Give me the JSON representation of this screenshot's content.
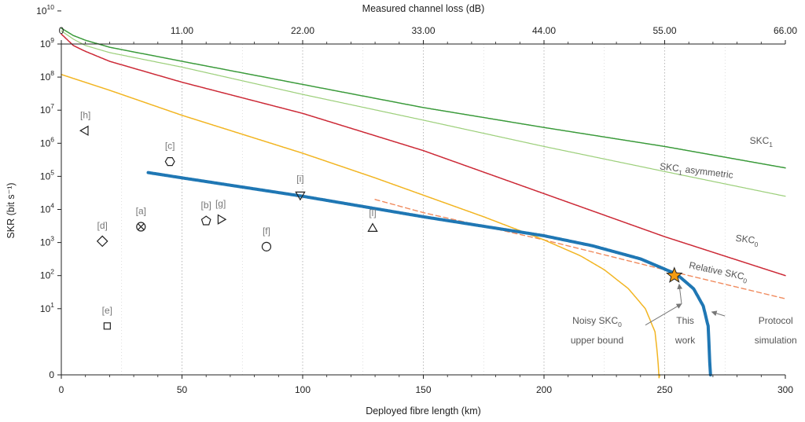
{
  "chart_data": {
    "type": "line",
    "xlabel": "Deployed fibre length (km)",
    "x2label": "Measured channel loss (dB)",
    "ylabel": "SKR (bit s⁻¹)",
    "xlim": [
      0,
      300
    ],
    "x_ticks": [
      "0",
      "50",
      "100",
      "150",
      "200",
      "250",
      "300"
    ],
    "x2_ticks": [
      "0",
      "11.00",
      "22.00",
      "33.00",
      "44.00",
      "55.00",
      "66.00"
    ],
    "y_scale": "log-with-zero",
    "y_ticks": [
      {
        "value": 0,
        "base": "0",
        "exp": ""
      },
      {
        "value": 10,
        "base": "10",
        "exp": "1"
      },
      {
        "value": 100,
        "base": "10",
        "exp": "2"
      },
      {
        "value": 1000,
        "base": "10",
        "exp": "3"
      },
      {
        "value": 10000,
        "base": "10",
        "exp": "4"
      },
      {
        "value": 100000,
        "base": "10",
        "exp": "5"
      },
      {
        "value": 1000000,
        "base": "10",
        "exp": "6"
      },
      {
        "value": 10000000,
        "base": "10",
        "exp": "7"
      },
      {
        "value": 100000000,
        "base": "10",
        "exp": "8"
      },
      {
        "value": 1000000000,
        "base": "10",
        "exp": "9"
      },
      {
        "value": 10000000000,
        "base": "10",
        "exp": "10"
      }
    ],
    "grid": "vertical dotted",
    "series": [
      {
        "id": "skc1",
        "color": "#3a9a3a",
        "width": 1.5,
        "dash": "",
        "points": [
          [
            0,
            3000000000.0
          ],
          [
            5,
            1800000000.0
          ],
          [
            10,
            1300000000.0
          ],
          [
            20,
            800000000.0
          ],
          [
            50,
            300000000.0
          ],
          [
            100,
            60000000.0
          ],
          [
            150,
            12000000.0
          ],
          [
            200,
            3000000.0
          ],
          [
            250,
            800000.0
          ],
          [
            300,
            180000.0
          ]
        ]
      },
      {
        "id": "skc1-asym",
        "color": "#9ccf7a",
        "width": 1.2,
        "dash": "",
        "points": [
          [
            0,
            2500000000.0
          ],
          [
            5,
            1400000000.0
          ],
          [
            10,
            900000000.0
          ],
          [
            20,
            550000000.0
          ],
          [
            50,
            200000000.0
          ],
          [
            100,
            30000000.0
          ],
          [
            150,
            5000000.0
          ],
          [
            200,
            800000.0
          ],
          [
            250,
            140000.0
          ],
          [
            300,
            25000.0
          ]
        ]
      },
      {
        "id": "skc0",
        "color": "#cc2936",
        "width": 1.5,
        "dash": "",
        "points": [
          [
            0,
            2000000000.0
          ],
          [
            5,
            900000000.0
          ],
          [
            10,
            600000000.0
          ],
          [
            20,
            300000000.0
          ],
          [
            50,
            70000000.0
          ],
          [
            100,
            8000000.0
          ],
          [
            150,
            600000.0
          ],
          [
            200,
            30000.0
          ],
          [
            250,
            1500.0
          ],
          [
            300,
            100.0
          ]
        ]
      },
      {
        "id": "relative-skc0",
        "color": "#f08a5d",
        "width": 1.4,
        "dash": "6 4",
        "points": [
          [
            130,
            20000.0
          ],
          [
            150,
            8000.0
          ],
          [
            200,
            1200.0
          ],
          [
            250,
            150.0
          ],
          [
            300,
            20.0
          ]
        ]
      },
      {
        "id": "noisy-skc0",
        "color": "#f2b522",
        "width": 1.5,
        "dash": "",
        "points": [
          [
            0,
            120000000.0
          ],
          [
            20,
            40000000.0
          ],
          [
            50,
            7000000.0
          ],
          [
            100,
            500000.0
          ],
          [
            130,
            90000.0
          ],
          [
            150,
            27000.0
          ],
          [
            175,
            6000.0
          ],
          [
            200,
            1200.0
          ],
          [
            215,
            400.0
          ],
          [
            225,
            150.0
          ],
          [
            235,
            40.0
          ],
          [
            242,
            10.0
          ],
          [
            246,
            2.0
          ],
          [
            248,
            0
          ]
        ]
      },
      {
        "id": "protocol-simulation",
        "color": "#1f77b4",
        "width": 4,
        "dash": "",
        "points": [
          [
            36,
            130000.0
          ],
          [
            50,
            90000.0
          ],
          [
            100,
            25000.0
          ],
          [
            150,
            6000.0
          ],
          [
            200,
            1600.0
          ],
          [
            220,
            800.0
          ],
          [
            240,
            320.0
          ],
          [
            255,
            110.0
          ],
          [
            262,
            40.0
          ],
          [
            266,
            12.0
          ],
          [
            268,
            3.0
          ],
          [
            269,
            0
          ]
        ]
      }
    ],
    "series_labels": [
      {
        "text": "SKC",
        "sub": "1",
        "tail": "",
        "color": "#555555",
        "x": 290,
        "y": 950000.0,
        "rot": 0
      },
      {
        "text": "SKC",
        "sub": "1",
        "tail": " asymmetric",
        "color": "#555555",
        "x": 263,
        "y": 120000.0,
        "rot": 7
      },
      {
        "text": "SKC",
        "sub": "0",
        "tail": "",
        "color": "#555555",
        "x": 284,
        "y": 1000.0,
        "rot": 7
      },
      {
        "text": "Relative SKC",
        "sub": "0",
        "tail": "",
        "color": "#555555",
        "x": 272,
        "y": 110.0,
        "rot": 12
      }
    ],
    "notes": [
      {
        "id": "noisy",
        "lines": [
          "Noisy SKC₀",
          "upper bound"
        ],
        "anchor": "middle",
        "x": 222,
        "y1": 3.5,
        "y2": 0.9,
        "arrow_from": [
          242,
          3.2
        ],
        "arrow_to": [
          257,
          14
        ]
      },
      {
        "id": "thiswork",
        "lines": [
          "This",
          "work"
        ],
        "anchor": "middle",
        "x": 258.5,
        "y1": 3.5,
        "y2": 0.9,
        "arrow_from": [
          257,
          14
        ],
        "arrow_to": [
          256,
          55
        ]
      },
      {
        "id": "protocol",
        "lines": [
          "Protocol",
          "simulation"
        ],
        "anchor": "middle",
        "x": 296,
        "y1": 3.5,
        "y2": 0.9,
        "arrow_from": [
          275,
          6
        ],
        "arrow_to": [
          269.5,
          8
        ]
      }
    ],
    "this_work_point": {
      "x": 254,
      "y": 100,
      "color": "#f39c12"
    },
    "references": [
      {
        "label": "[a]",
        "marker": "circle-x",
        "x": 33,
        "y": 3000
      },
      {
        "label": "[b]",
        "marker": "pentagon",
        "x": 60,
        "y": 4500
      },
      {
        "label": "[c]",
        "marker": "hexagon",
        "x": 45,
        "y": 280000
      },
      {
        "label": "[d]",
        "marker": "diamond",
        "x": 17,
        "y": 1100
      },
      {
        "label": "[e]",
        "marker": "square",
        "x": 19,
        "y": 3
      },
      {
        "label": "[f]",
        "marker": "circle",
        "x": 85,
        "y": 750
      },
      {
        "label": "[g]",
        "marker": "triangle-right",
        "x": 66,
        "y": 5000
      },
      {
        "label": "[h]",
        "marker": "triangle-left",
        "x": 10,
        "y": 2400000
      },
      {
        "label": "[i]",
        "marker": "triangle-down",
        "x": 99,
        "y": 28000
      },
      {
        "label": "[l]",
        "marker": "triangle-up",
        "x": 129,
        "y": 2600
      }
    ]
  }
}
